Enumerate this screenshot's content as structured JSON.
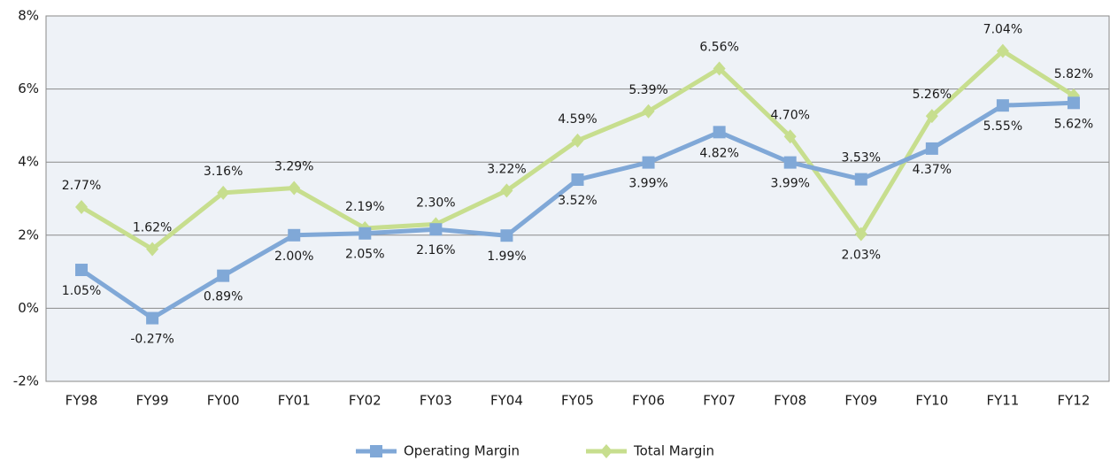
{
  "chart_data": {
    "type": "line",
    "categories": [
      "FY98",
      "FY99",
      "FY00",
      "FY01",
      "FY02",
      "FY03",
      "FY04",
      "FY05",
      "FY06",
      "FY07",
      "FY08",
      "FY09",
      "FY10",
      "FY11",
      "FY12"
    ],
    "series": [
      {
        "name": "Operating Margin",
        "color": "#80a8d7",
        "marker": "square",
        "values": [
          1.05,
          -0.27,
          0.89,
          2.0,
          2.05,
          2.16,
          1.99,
          3.52,
          3.99,
          4.82,
          3.99,
          3.53,
          4.37,
          5.55,
          5.62
        ],
        "value_labels": [
          "1.05%",
          "-0.27%",
          "0.89%",
          "2.00%",
          "2.05%",
          "2.16%",
          "1.99%",
          "3.52%",
          "3.99%",
          "4.82%",
          "3.99%",
          "3.53%",
          "4.37%",
          "5.55%",
          "5.62%"
        ]
      },
      {
        "name": "Total Margin",
        "color": "#c7de8e",
        "marker": "diamond",
        "values": [
          2.77,
          1.62,
          3.16,
          3.29,
          2.19,
          2.3,
          3.22,
          4.59,
          5.39,
          6.56,
          4.7,
          2.03,
          5.26,
          7.04,
          5.82
        ],
        "value_labels": [
          "2.77%",
          "1.62%",
          "3.16%",
          "3.29%",
          "2.19%",
          "2.30%",
          "3.22%",
          "4.59%",
          "5.39%",
          "6.56%",
          "4.70%",
          "2.03%",
          "5.26%",
          "7.04%",
          "5.82%"
        ]
      }
    ],
    "ylim": [
      -2,
      8
    ],
    "yticks": [
      {
        "value": -2,
        "label": "-2%"
      },
      {
        "value": 0,
        "label": "0%"
      },
      {
        "value": 2,
        "label": "2%"
      },
      {
        "value": 4,
        "label": "4%"
      },
      {
        "value": 6,
        "label": "6%"
      },
      {
        "value": 8,
        "label": "8%"
      }
    ],
    "grid": true,
    "legend": "bottom"
  }
}
